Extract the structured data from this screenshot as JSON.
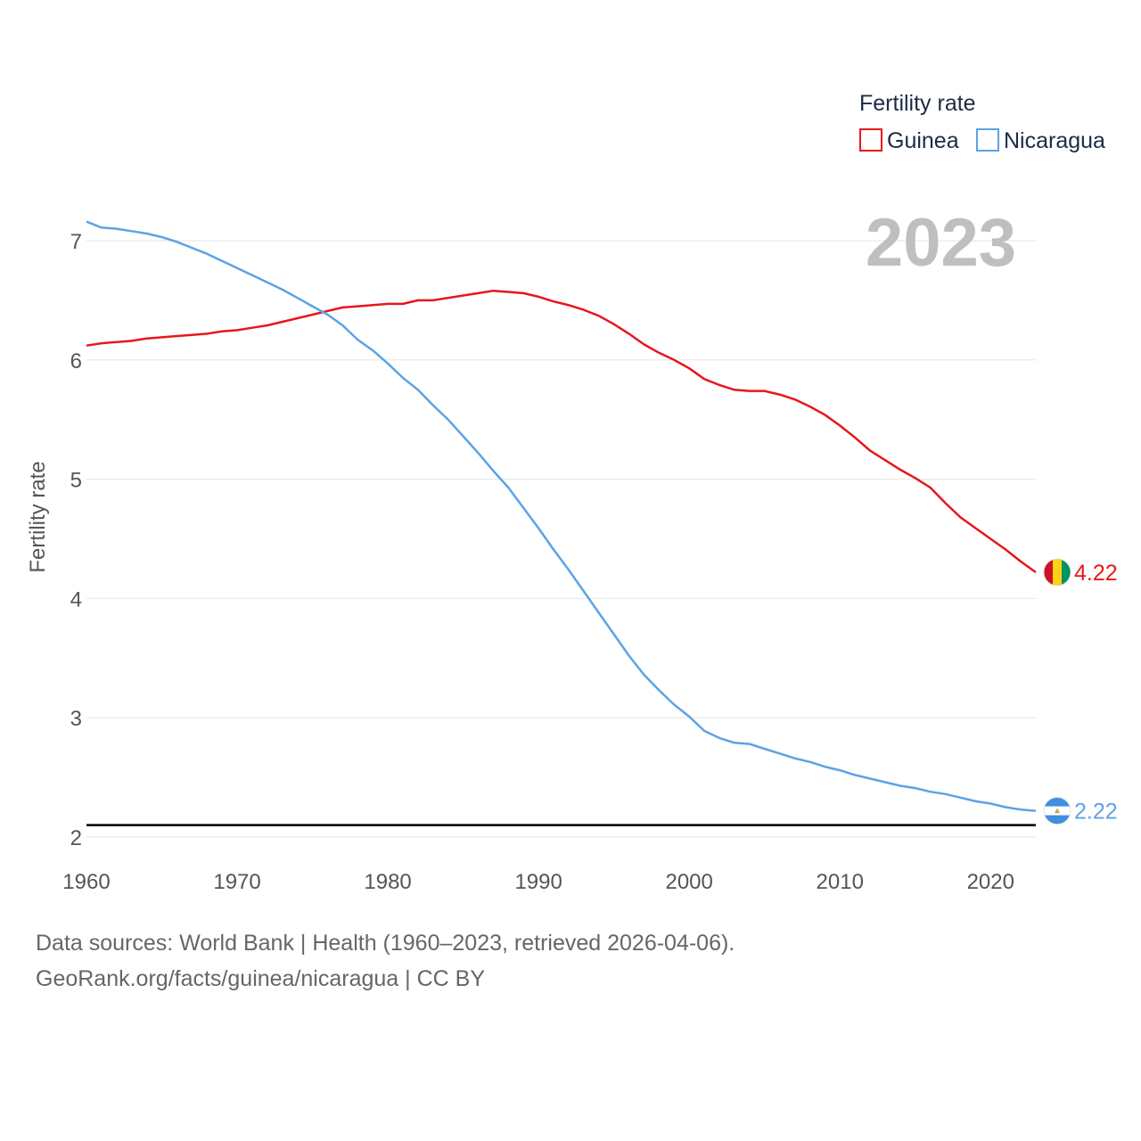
{
  "chart_data": {
    "type": "line",
    "title": "",
    "current_year": "2023",
    "xlabel": "",
    "ylabel": "Fertility rate",
    "xlim": [
      1960,
      2023
    ],
    "ylim": [
      2,
      7
    ],
    "x_ticks": [
      1960,
      1970,
      1980,
      1990,
      2000,
      2010,
      2020
    ],
    "y_ticks": [
      2,
      3,
      4,
      5,
      6,
      7
    ],
    "grid": true,
    "reference_line": {
      "y": 2.1,
      "color": "#000000"
    },
    "legend": {
      "title": "Fertility rate",
      "placement": "top-right"
    },
    "x": [
      1960,
      1961,
      1962,
      1963,
      1964,
      1965,
      1966,
      1967,
      1968,
      1969,
      1970,
      1971,
      1972,
      1973,
      1974,
      1975,
      1976,
      1977,
      1978,
      1979,
      1980,
      1981,
      1982,
      1983,
      1984,
      1985,
      1986,
      1987,
      1988,
      1989,
      1990,
      1991,
      1992,
      1993,
      1994,
      1995,
      1996,
      1997,
      1998,
      1999,
      2000,
      2001,
      2002,
      2003,
      2004,
      2005,
      2006,
      2007,
      2008,
      2009,
      2010,
      2011,
      2012,
      2013,
      2014,
      2015,
      2016,
      2017,
      2018,
      2019,
      2020,
      2021,
      2022,
      2023
    ],
    "series": [
      {
        "name": "Guinea",
        "color": "#e8161b",
        "end_label": "4.22",
        "values": [
          6.12,
          6.14,
          6.15,
          6.16,
          6.18,
          6.19,
          6.2,
          6.21,
          6.22,
          6.24,
          6.25,
          6.27,
          6.29,
          6.32,
          6.35,
          6.38,
          6.41,
          6.44,
          6.45,
          6.46,
          6.47,
          6.47,
          6.5,
          6.5,
          6.52,
          6.54,
          6.56,
          6.58,
          6.57,
          6.56,
          6.53,
          6.49,
          6.46,
          6.42,
          6.37,
          6.3,
          6.22,
          6.13,
          6.06,
          6.0,
          5.93,
          5.84,
          5.79,
          5.75,
          5.74,
          5.74,
          5.71,
          5.67,
          5.61,
          5.54,
          5.45,
          5.35,
          5.24,
          5.16,
          5.08,
          5.01,
          4.93,
          4.8,
          4.68,
          4.59,
          4.5,
          4.41,
          4.31,
          4.22
        ]
      },
      {
        "name": "Nicaragua",
        "color": "#5ba3e6",
        "end_label": "2.22",
        "values": [
          7.16,
          7.11,
          7.1,
          7.08,
          7.06,
          7.03,
          6.99,
          6.94,
          6.89,
          6.83,
          6.77,
          6.71,
          6.65,
          6.59,
          6.52,
          6.45,
          6.38,
          6.29,
          6.17,
          6.08,
          5.97,
          5.85,
          5.75,
          5.62,
          5.5,
          5.36,
          5.22,
          5.07,
          4.93,
          4.76,
          4.59,
          4.41,
          4.24,
          4.06,
          3.88,
          3.7,
          3.52,
          3.36,
          3.23,
          3.11,
          3.01,
          2.89,
          2.83,
          2.79,
          2.78,
          2.74,
          2.7,
          2.66,
          2.63,
          2.59,
          2.56,
          2.52,
          2.49,
          2.46,
          2.43,
          2.41,
          2.38,
          2.36,
          2.33,
          2.3,
          2.28,
          2.25,
          2.23,
          2.22
        ]
      }
    ]
  },
  "footer": {
    "source": "Data sources: World Bank | Health (1960–2023, retrieved 2026-04-06).",
    "link": "GeoRank.org/facts/guinea/nicaragua | CC BY"
  },
  "flags": [
    {
      "country": "Guinea",
      "icon": "guinea-flag-icon",
      "colors": [
        "#ce1126",
        "#fcd116",
        "#009460"
      ]
    },
    {
      "country": "Nicaragua",
      "icon": "nicaragua-flag-icon",
      "colors": [
        "#3d8fe0",
        "#ffffff",
        "#3d8fe0"
      ]
    }
  ]
}
